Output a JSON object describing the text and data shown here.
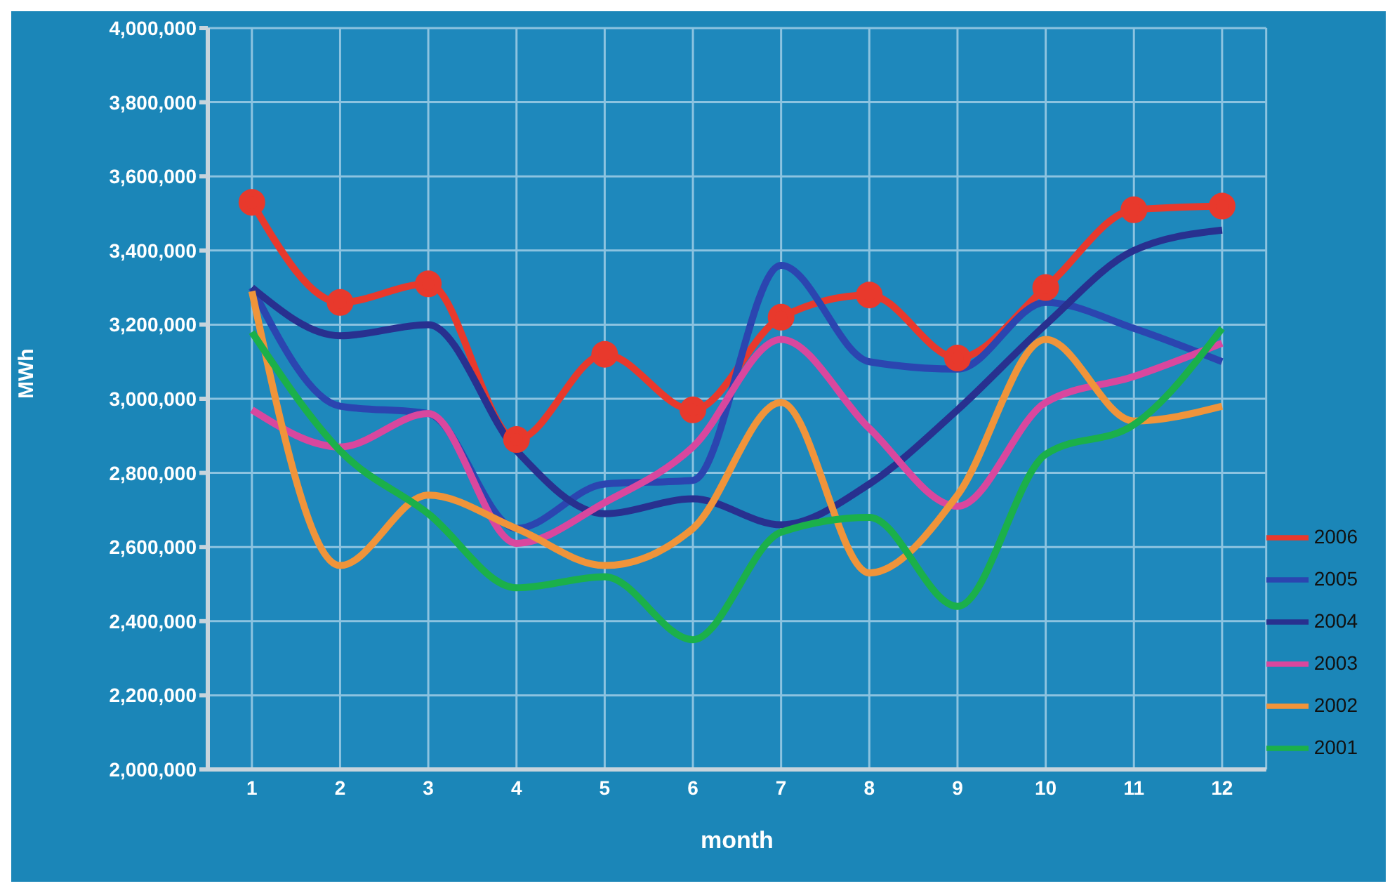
{
  "chart_data": {
    "type": "line",
    "xlabel": "month",
    "ylabel": "MWh",
    "x": [
      1,
      2,
      3,
      4,
      5,
      6,
      7,
      8,
      9,
      10,
      11,
      12
    ],
    "xlim": [
      0.5,
      12.5
    ],
    "xticks": [
      1,
      2,
      3,
      4,
      5,
      6,
      7,
      8,
      9,
      10,
      11,
      12
    ],
    "ylim": [
      2000000,
      4000000
    ],
    "yticks": [
      {
        "value": 2000000,
        "label": "2,000,000"
      },
      {
        "value": 2200000,
        "label": "2,200,000"
      },
      {
        "value": 2400000,
        "label": "2,400,000"
      },
      {
        "value": 2600000,
        "label": "2,600,000"
      },
      {
        "value": 2800000,
        "label": "2,800,000"
      },
      {
        "value": 3000000,
        "label": "3,000,000"
      },
      {
        "value": 3200000,
        "label": "3,200,000"
      },
      {
        "value": 3400000,
        "label": "3,400,000"
      },
      {
        "value": 3600000,
        "label": "3,600,000"
      },
      {
        "value": 3800000,
        "label": "3,800,000"
      },
      {
        "value": 4000000,
        "label": "4,000,000"
      }
    ],
    "grid": true,
    "legend": "right",
    "line_style": "solid",
    "series": [
      {
        "name": "2006",
        "color": "#e8392c",
        "marker": "circle",
        "values": [
          3530000,
          3260000,
          3310000,
          2890000,
          3120000,
          2970000,
          3220000,
          3280000,
          3110000,
          3300000,
          3510000,
          3520000
        ]
      },
      {
        "name": "2005",
        "color": "#2b45b0",
        "marker": "none",
        "values": [
          3300000,
          2980000,
          2960000,
          2650000,
          2770000,
          2780000,
          3360000,
          3100000,
          3080000,
          3260000,
          3190000,
          3100000
        ]
      },
      {
        "name": "2004",
        "color": "#28308f",
        "marker": "none",
        "values": [
          3300000,
          3170000,
          3200000,
          2860000,
          2690000,
          2730000,
          2660000,
          2770000,
          2970000,
          3200000,
          3400000,
          3455000
        ]
      },
      {
        "name": "2003",
        "color": "#d9479e",
        "marker": "none",
        "values": [
          2970000,
          2870000,
          2960000,
          2610000,
          2720000,
          2870000,
          3160000,
          2920000,
          2710000,
          2990000,
          3060000,
          3150000
        ]
      },
      {
        "name": "2002",
        "color": "#f0943a",
        "marker": "none",
        "values": [
          3290000,
          2550000,
          2740000,
          2650000,
          2550000,
          2650000,
          2990000,
          2530000,
          2740000,
          3160000,
          2940000,
          2980000
        ]
      },
      {
        "name": "2001",
        "color": "#1bb04a",
        "marker": "none",
        "values": [
          3180000,
          2860000,
          2690000,
          2490000,
          2520000,
          2350000,
          2640000,
          2680000,
          2440000,
          2850000,
          2930000,
          3190000
        ]
      }
    ]
  }
}
